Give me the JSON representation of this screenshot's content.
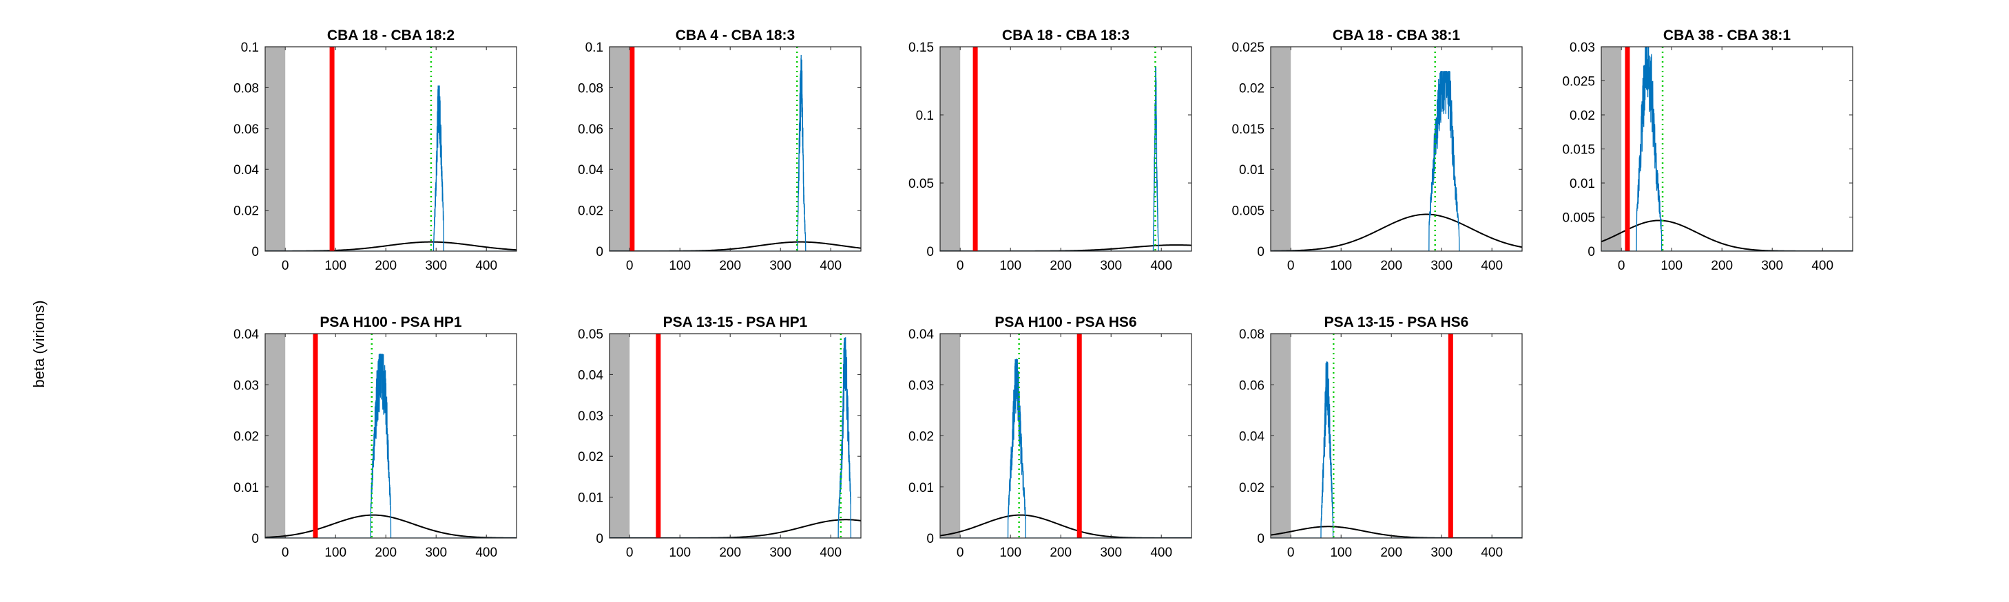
{
  "figure": {
    "shared_ylabel": "beta (virions)",
    "colors": {
      "posterior": "#0072BD",
      "prior": "#000000",
      "observed": "#FF0000",
      "estimate": "#00CC00",
      "excluded_region": "#B3B3B3"
    }
  },
  "chart_data": [
    {
      "type": "line",
      "title": "CBA 18 - CBA 18:2",
      "xlim": [
        -40,
        460
      ],
      "ylim": [
        0,
        0.1
      ],
      "xticks": [
        "0",
        "100",
        "200",
        "300",
        "400"
      ],
      "yticks": [
        "0",
        "0.02",
        "0.04",
        "0.06",
        "0.08",
        "0.1"
      ],
      "shaded_region": [
        -40,
        0
      ],
      "red_line_x": 93,
      "green_line_x": 290,
      "prior": {
        "mean": 290,
        "sd": 85,
        "peak": 0.0045
      },
      "posterior_peaks": [
        [
          295,
          0.003
        ],
        [
          300,
          0.035
        ],
        [
          305,
          0.081
        ],
        [
          310,
          0.05
        ],
        [
          315,
          0.012
        ]
      ]
    },
    {
      "type": "line",
      "title": "CBA 4 - CBA 18:3",
      "xlim": [
        -40,
        460
      ],
      "ylim": [
        0,
        0.1
      ],
      "xticks": [
        "0",
        "100",
        "200",
        "300",
        "400"
      ],
      "yticks": [
        "0",
        "0.02",
        "0.04",
        "0.06",
        "0.08",
        "0.1"
      ],
      "shaded_region": [
        -40,
        0
      ],
      "red_line_x": 5,
      "green_line_x": 333,
      "prior": {
        "mean": 340,
        "sd": 80,
        "peak": 0.0045
      },
      "posterior_peaks": [
        [
          334,
          0.004
        ],
        [
          338,
          0.06
        ],
        [
          342,
          0.096
        ],
        [
          346,
          0.03
        ],
        [
          350,
          0.004
        ]
      ]
    },
    {
      "type": "line",
      "title": "CBA 18 - CBA 18:3",
      "xlim": [
        -40,
        460
      ],
      "ylim": [
        0,
        0.15
      ],
      "xticks": [
        "0",
        "100",
        "200",
        "300",
        "400"
      ],
      "yticks": [
        "0",
        "0.05",
        "0.1",
        "0.15"
      ],
      "shaded_region": [
        -40,
        0
      ],
      "red_line_x": 30,
      "green_line_x": 388,
      "prior": {
        "mean": 430,
        "sd": 90,
        "peak": 0.0045
      },
      "posterior_peaks": [
        [
          384,
          0.004
        ],
        [
          387,
          0.08
        ],
        [
          389,
          0.135
        ],
        [
          391,
          0.06
        ],
        [
          394,
          0.004
        ]
      ]
    },
    {
      "type": "line",
      "title": "CBA 18 - CBA 38:1",
      "xlim": [
        -40,
        460
      ],
      "ylim": [
        0,
        0.025
      ],
      "xticks": [
        "0",
        "100",
        "200",
        "300",
        "400"
      ],
      "yticks": [
        "0",
        "0.005",
        "0.01",
        "0.015",
        "0.02",
        "0.025"
      ],
      "shaded_region": [
        -40,
        0
      ],
      "red_line_x": null,
      "green_line_x": 287,
      "prior": {
        "mean": 270,
        "sd": 90,
        "peak": 0.0045
      },
      "posterior_peaks": [
        [
          275,
          0.003
        ],
        [
          285,
          0.012
        ],
        [
          295,
          0.019
        ],
        [
          305,
          0.022
        ],
        [
          315,
          0.021
        ],
        [
          325,
          0.01
        ],
        [
          335,
          0.002
        ]
      ]
    },
    {
      "type": "line",
      "title": "CBA 38 - CBA 38:1",
      "xlim": [
        -40,
        460
      ],
      "ylim": [
        0,
        0.03
      ],
      "xticks": [
        "0",
        "100",
        "200",
        "300",
        "400"
      ],
      "yticks": [
        "0",
        "0.005",
        "0.01",
        "0.015",
        "0.02",
        "0.025",
        "0.03"
      ],
      "shaded_region": [
        -40,
        0
      ],
      "red_line_x": 12,
      "green_line_x": 82,
      "prior": {
        "mean": 75,
        "sd": 75,
        "peak": 0.0045
      },
      "posterior_peaks": [
        [
          30,
          0.004
        ],
        [
          40,
          0.018
        ],
        [
          50,
          0.03
        ],
        [
          60,
          0.024
        ],
        [
          70,
          0.012
        ],
        [
          80,
          0.003
        ]
      ]
    },
    {
      "type": "line",
      "title": "PSA H100 - PSA HP1",
      "xlim": [
        -40,
        460
      ],
      "ylim": [
        0,
        0.04
      ],
      "xticks": [
        "0",
        "100",
        "200",
        "300",
        "400"
      ],
      "yticks": [
        "0",
        "0.01",
        "0.02",
        "0.03",
        "0.04"
      ],
      "shaded_region": [
        -40,
        0
      ],
      "red_line_x": 60,
      "green_line_x": 172,
      "prior": {
        "mean": 175,
        "sd": 80,
        "peak": 0.0045
      },
      "posterior_peaks": [
        [
          170,
          0.006
        ],
        [
          180,
          0.025
        ],
        [
          190,
          0.036
        ],
        [
          200,
          0.028
        ],
        [
          210,
          0.005
        ]
      ]
    },
    {
      "type": "line",
      "title": "PSA 13-15 - PSA HP1",
      "xlim": [
        -40,
        460
      ],
      "ylim": [
        0,
        0.05
      ],
      "xticks": [
        "0",
        "100",
        "200",
        "300",
        "400"
      ],
      "yticks": [
        "0",
        "0.01",
        "0.02",
        "0.03",
        "0.04",
        "0.05"
      ],
      "shaded_region": [
        -40,
        0
      ],
      "red_line_x": 57,
      "green_line_x": 420,
      "prior": {
        "mean": 430,
        "sd": 85,
        "peak": 0.0045
      },
      "posterior_peaks": [
        [
          415,
          0.004
        ],
        [
          422,
          0.02
        ],
        [
          428,
          0.049
        ],
        [
          434,
          0.03
        ],
        [
          440,
          0.008
        ]
      ]
    },
    {
      "type": "line",
      "title": "PSA H100 - PSA HS6",
      "xlim": [
        -40,
        460
      ],
      "ylim": [
        0,
        0.04
      ],
      "xticks": [
        "0",
        "100",
        "200",
        "300",
        "400"
      ],
      "yticks": [
        "0",
        "0.01",
        "0.02",
        "0.03",
        "0.04"
      ],
      "shaded_region": [
        -40,
        0
      ],
      "red_line_x": 237,
      "green_line_x": 117,
      "prior": {
        "mean": 120,
        "sd": 75,
        "peak": 0.0045
      },
      "posterior_peaks": [
        [
          95,
          0.004
        ],
        [
          105,
          0.022
        ],
        [
          112,
          0.035
        ],
        [
          120,
          0.02
        ],
        [
          130,
          0.004
        ]
      ]
    },
    {
      "type": "line",
      "title": "PSA 13-15 - PSA HS6",
      "xlim": [
        -40,
        460
      ],
      "ylim": [
        0,
        0.08
      ],
      "xticks": [
        "0",
        "100",
        "200",
        "300",
        "400"
      ],
      "yticks": [
        "0",
        "0.02",
        "0.04",
        "0.06",
        "0.08"
      ],
      "shaded_region": [
        -40,
        0
      ],
      "red_line_x": 318,
      "green_line_x": 85,
      "prior": {
        "mean": 75,
        "sd": 70,
        "peak": 0.0045
      },
      "posterior_peaks": [
        [
          60,
          0.004
        ],
        [
          66,
          0.035
        ],
        [
          72,
          0.069
        ],
        [
          78,
          0.04
        ],
        [
          84,
          0.006
        ]
      ]
    }
  ]
}
